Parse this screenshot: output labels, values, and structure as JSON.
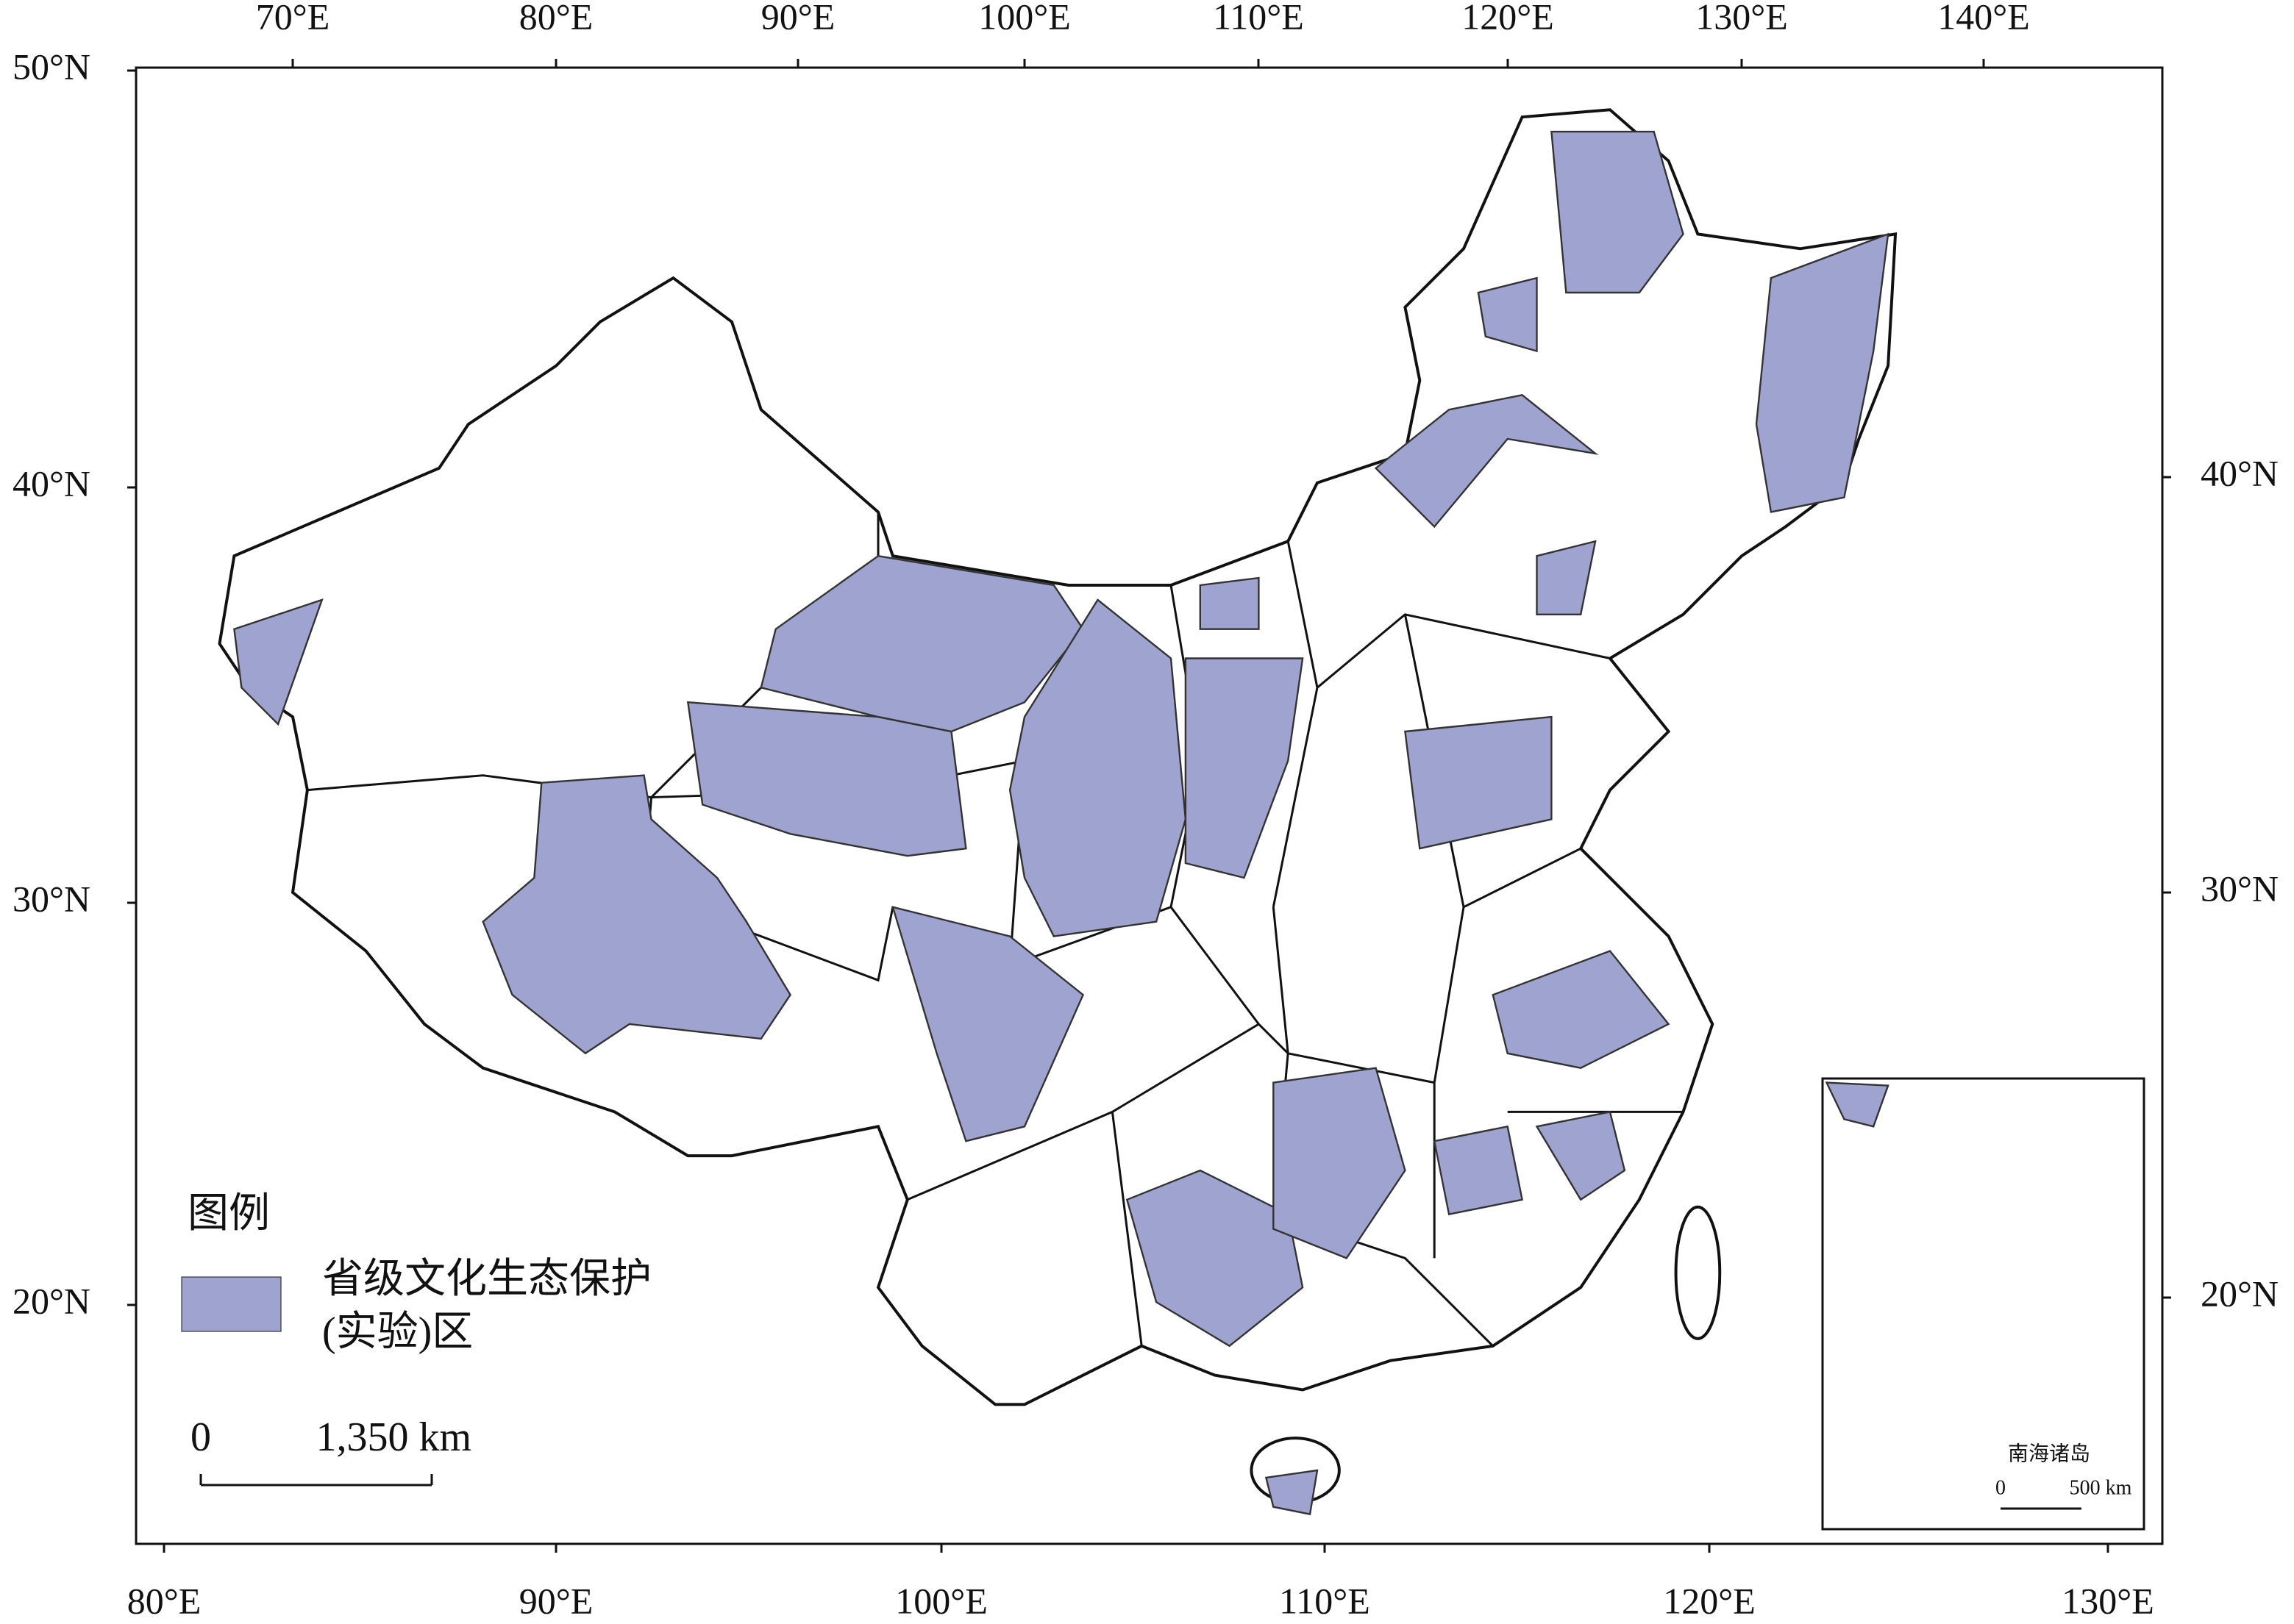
{
  "map": {
    "top_ticks": [
      "70°E",
      "80°E",
      "90°E",
      "100°E",
      "110°E",
      "120°E",
      "130°E",
      "140°E"
    ],
    "bottom_ticks": [
      "80°E",
      "90°E",
      "100°E",
      "110°E",
      "120°E",
      "130°E"
    ],
    "left_ticks": [
      "50°N",
      "40°N",
      "30°N",
      "20°N"
    ],
    "right_ticks": [
      "40°N",
      "30°N",
      "20°N"
    ],
    "legend": {
      "title": "图例",
      "label_lines": [
        "省级文化生态保护",
        "(实验)区"
      ]
    },
    "scale_bar": {
      "start": "0",
      "end": "1,350 km"
    },
    "inset": {
      "title": "南海诸岛",
      "scale_start": "0",
      "scale_end": "500 km"
    }
  }
}
